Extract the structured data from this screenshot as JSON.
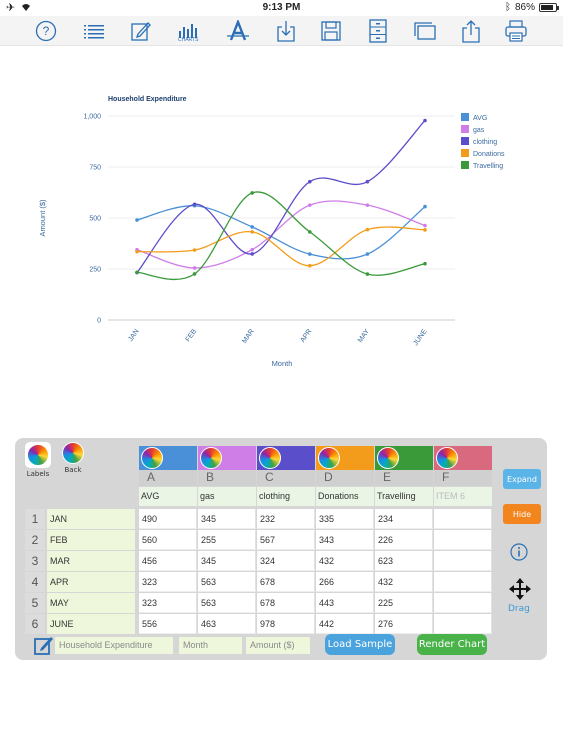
{
  "status_bar": {
    "time": "9:13 PM",
    "battery": "86%",
    "battery_level": 0.86
  },
  "toolbar": {
    "charts_label": "CHARTS"
  },
  "chart": {
    "title": "Household Expenditure",
    "xlabel": "Month",
    "ylabel": "Amount ($)",
    "y_ticks": [
      "0",
      "250",
      "500",
      "750",
      "1,000"
    ]
  },
  "chart_data": {
    "type": "line",
    "title": "Household Expenditure",
    "xlabel": "Month",
    "ylabel": "Amount ($)",
    "categories": [
      "JAN",
      "FEB",
      "MAR",
      "APR",
      "MAY",
      "JUNE"
    ],
    "ylim": [
      0,
      1000
    ],
    "y_ticks": [
      0,
      250,
      500,
      750,
      1000
    ],
    "grid": true,
    "legend_position": "right",
    "series": [
      {
        "name": "AVG",
        "color": "#4a90d9",
        "values": [
          490,
          560,
          456,
          323,
          323,
          556
        ]
      },
      {
        "name": "gas",
        "color": "#cf7ee8",
        "values": [
          345,
          255,
          345,
          563,
          563,
          463
        ]
      },
      {
        "name": "clothing",
        "color": "#5b4ecb",
        "values": [
          232,
          567,
          324,
          678,
          678,
          978
        ]
      },
      {
        "name": "Donations",
        "color": "#f39c1b",
        "values": [
          335,
          343,
          432,
          266,
          443,
          442
        ]
      },
      {
        "name": "Travelling",
        "color": "#3a9a3a",
        "values": [
          234,
          226,
          623,
          432,
          225,
          276
        ]
      }
    ]
  },
  "sheet": {
    "labels_button": "Labels",
    "back_button": "Back",
    "columns": [
      {
        "letter": "A",
        "name": "AVG",
        "color": "#4a90d9"
      },
      {
        "letter": "B",
        "name": "gas",
        "color": "#cf7ee8"
      },
      {
        "letter": "C",
        "name": "clothing",
        "color": "#5b4ecb"
      },
      {
        "letter": "D",
        "name": "Donations",
        "color": "#f39c1b"
      },
      {
        "letter": "E",
        "name": "Travelling",
        "color": "#3a9a3a"
      },
      {
        "letter": "F",
        "name": "ITEM 6",
        "color": "#d9697f"
      }
    ],
    "rows": [
      {
        "index": "1",
        "label": "JAN",
        "values": [
          "490",
          "345",
          "232",
          "335",
          "234",
          ""
        ]
      },
      {
        "index": "2",
        "label": "FEB",
        "values": [
          "560",
          "255",
          "567",
          "343",
          "226",
          ""
        ]
      },
      {
        "index": "3",
        "label": "MAR",
        "values": [
          "456",
          "345",
          "324",
          "432",
          "623",
          ""
        ]
      },
      {
        "index": "4",
        "label": "APR",
        "values": [
          "323",
          "563",
          "678",
          "266",
          "432",
          ""
        ]
      },
      {
        "index": "5",
        "label": "MAY",
        "values": [
          "323",
          "563",
          "678",
          "443",
          "225",
          ""
        ]
      },
      {
        "index": "6",
        "label": "JUNE",
        "values": [
          "556",
          "463",
          "978",
          "442",
          "276",
          ""
        ]
      }
    ],
    "expand_button": "Expand",
    "hide_button": "Hide",
    "drag_label": "Drag",
    "chart_title_field": "Household Expenditure",
    "x_label_field": "Month",
    "y_label_field": "Amount ($)",
    "load_sample_button": "Load Sample",
    "render_chart_button": "Render Chart",
    "colors": {
      "expand": "#5ab4e8",
      "hide": "#f2851e",
      "load": "#4aa3dc",
      "render": "#49b249"
    }
  }
}
